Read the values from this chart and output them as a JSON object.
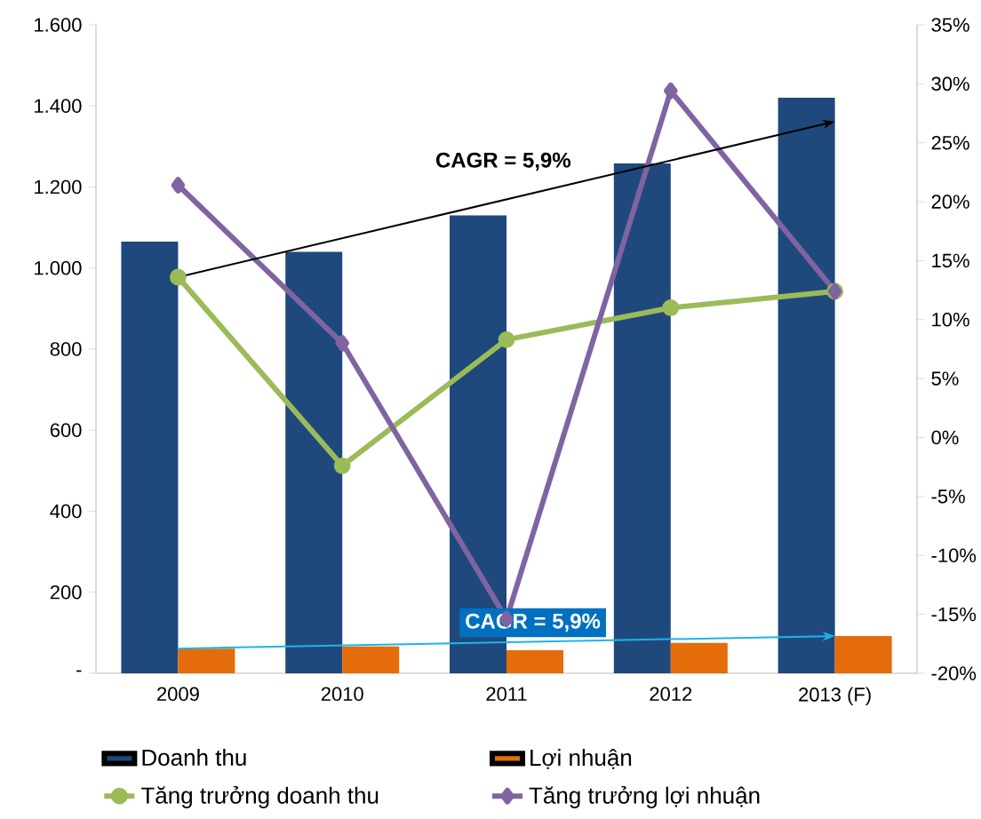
{
  "chart_data": {
    "type": "bar",
    "categories": [
      "2009",
      "2010",
      "2011",
      "2012",
      "2013 (F)"
    ],
    "series": [
      {
        "name": "Doanh thu",
        "color": "#1f497d",
        "values": [
          1065,
          1040,
          1130,
          1258,
          1420
        ]
      },
      {
        "name": "Lợi nhuận",
        "color": "#e46c0a",
        "values": [
          61,
          66,
          57,
          75,
          92
        ]
      },
      {
        "name": "Tăng trưởng doanh thu",
        "type": "line",
        "axis": "y2",
        "marker": "circle",
        "color": "#9bbb59",
        "values": [
          13.6,
          -2.4,
          8.3,
          11.0,
          12.4
        ]
      },
      {
        "name": "Tăng trưởng lợi nhuận",
        "type": "line",
        "axis": "y2",
        "marker": "diamond",
        "color": "#8064a2",
        "values": [
          21.4,
          8.0,
          -15.4,
          29.4,
          12.4
        ]
      },
      {
        "type": "line",
        "axis": "y2",
        "color": "#000000",
        "values": [
          13.6,
          null,
          null,
          null,
          26.8
        ]
      },
      {
        "type": "line",
        "color": "#1fb4e8",
        "values": [
          61,
          null,
          null,
          null,
          92
        ]
      }
    ],
    "ylim": [
      0,
      1600
    ],
    "yticks": [
      {
        "value": 0,
        "label": "-"
      },
      {
        "value": 200,
        "label": "200"
      },
      {
        "value": 400,
        "label": "400"
      },
      {
        "value": 600,
        "label": "600"
      },
      {
        "value": 800,
        "label": "800"
      },
      {
        "value": 1000,
        "label": "1.000"
      },
      {
        "value": 1200,
        "label": "1.200"
      },
      {
        "value": 1400,
        "label": "1.400"
      },
      {
        "value": 1600,
        "label": "1.600"
      }
    ],
    "y2lim": [
      -20,
      35
    ],
    "y2ticks": [
      {
        "value": -20,
        "label": "-20%"
      },
      {
        "value": -15,
        "label": "-15%"
      },
      {
        "value": -10,
        "label": "-10%"
      },
      {
        "value": -5,
        "label": "-5%"
      },
      {
        "value": 0,
        "label": "0%"
      },
      {
        "value": 5,
        "label": "5%"
      },
      {
        "value": 10,
        "label": "10%"
      },
      {
        "value": 15,
        "label": "15%"
      },
      {
        "value": 20,
        "label": "20%"
      },
      {
        "value": 25,
        "label": "25%"
      },
      {
        "value": 30,
        "label": "30%"
      },
      {
        "value": 35,
        "label": "35%"
      }
    ],
    "legend": "bottom",
    "annotations": [
      "CAGR = 5,9%",
      "CAGR = 5,9%"
    ]
  }
}
